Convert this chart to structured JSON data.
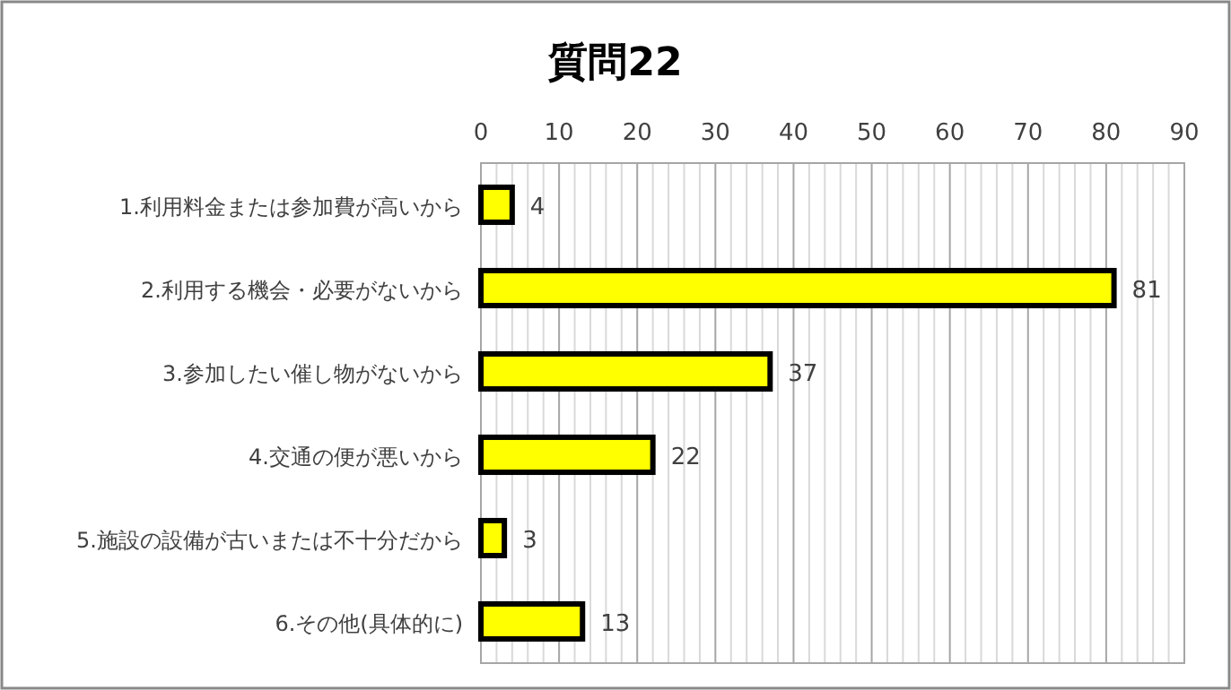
{
  "chart_data": {
    "type": "bar",
    "orientation": "horizontal",
    "title": "質問22",
    "categories": [
      "1.利用料金または参加費が高いから",
      "2.利用する機会・必要がないから",
      "3.参加したい催し物がないから",
      "4.交通の便が悪いから",
      "5.施設の設備が古いまたは不十分だから",
      "6.その他(具体的に)"
    ],
    "values": [
      4,
      81,
      37,
      22,
      3,
      13
    ],
    "color": "#ffff00",
    "data_labels": true,
    "grid": "x",
    "xlim": [
      0,
      90
    ],
    "xticks": [
      0,
      {
        "value": 2,
        "label": null
      },
      {
        "value": 4,
        "label": null
      },
      {
        "value": 6,
        "label": null
      },
      {
        "value": 8,
        "label": null
      },
      10,
      {
        "value": 12,
        "label": null
      },
      {
        "value": 14,
        "label": null
      },
      {
        "value": 16,
        "label": null
      },
      {
        "value": 18,
        "label": null
      },
      20,
      {
        "value": 22,
        "label": null
      },
      {
        "value": 24,
        "label": null
      },
      {
        "value": 26,
        "label": null
      },
      {
        "value": 28,
        "label": null
      },
      30,
      {
        "value": 32,
        "label": null
      },
      {
        "value": 34,
        "label": null
      },
      {
        "value": 36,
        "label": null
      },
      {
        "value": 38,
        "label": null
      },
      40,
      {
        "value": 42,
        "label": null
      },
      {
        "value": 44,
        "label": null
      },
      {
        "value": 46,
        "label": null
      },
      {
        "value": 48,
        "label": null
      },
      50,
      {
        "value": 52,
        "label": null
      },
      {
        "value": 54,
        "label": null
      },
      {
        "value": 56,
        "label": null
      },
      {
        "value": 58,
        "label": null
      },
      60,
      {
        "value": 62,
        "label": null
      },
      {
        "value": 64,
        "label": null
      },
      {
        "value": 66,
        "label": null
      },
      {
        "value": 68,
        "label": null
      },
      70,
      {
        "value": 72,
        "label": null
      },
      {
        "value": 74,
        "label": null
      },
      {
        "value": 76,
        "label": null
      },
      {
        "value": 78,
        "label": null
      },
      80,
      {
        "value": 82,
        "label": null
      },
      {
        "value": 84,
        "label": null
      },
      {
        "value": 86,
        "label": null
      },
      {
        "value": 88,
        "label": null
      },
      90
    ]
  }
}
